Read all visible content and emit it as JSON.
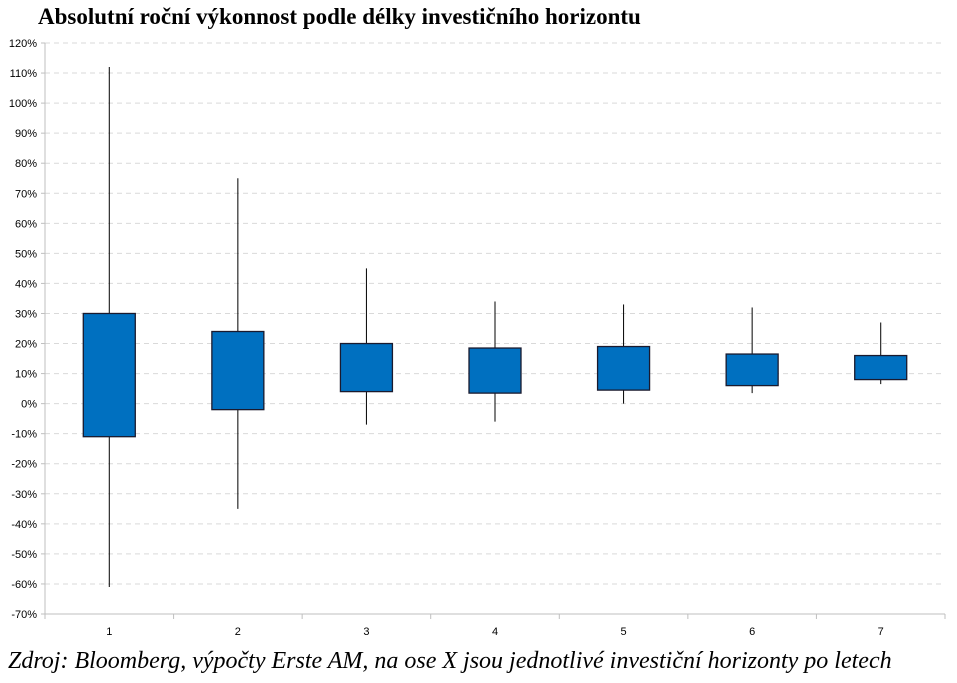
{
  "title": "Absolutní roční výkonnost podle délky investičního horizontu",
  "caption": "Zdroj: Bloomberg, výpočty Erste AM, na ose X jsou jednotlivé investiční horizonty po letech",
  "colors": {
    "box": "#0070C0",
    "box_border": "#1a1a2e",
    "grid": "#d9d9d9",
    "axis": "#bfbfbf",
    "whisker": "#000000"
  },
  "chart_data": {
    "type": "box",
    "title": "Absolutní roční výkonnost podle délky investičního horizontu",
    "xlabel": "",
    "ylabel": "",
    "ylim": [
      -70,
      120
    ],
    "ytick_step": 10,
    "yticks": [
      "120%",
      "110%",
      "100%",
      "90%",
      "80%",
      "70%",
      "60%",
      "50%",
      "40%",
      "30%",
      "20%",
      "10%",
      "0%",
      "-10%",
      "-20%",
      "-30%",
      "-40%",
      "-50%",
      "-60%",
      "-70%"
    ],
    "categories": [
      "1",
      "2",
      "3",
      "4",
      "5",
      "6",
      "7"
    ],
    "boxes": [
      {
        "x": "1",
        "min": -61,
        "q1": -11,
        "q3": 30,
        "max": 112
      },
      {
        "x": "2",
        "min": -35,
        "q1": -2,
        "q3": 24,
        "max": 75
      },
      {
        "x": "3",
        "min": -7,
        "q1": 4,
        "q3": 20,
        "max": 45
      },
      {
        "x": "4",
        "min": -6,
        "q1": 3.5,
        "q3": 18.5,
        "max": 34
      },
      {
        "x": "5",
        "min": 0,
        "q1": 4.5,
        "q3": 19,
        "max": 33
      },
      {
        "x": "6",
        "min": 3.5,
        "q1": 6,
        "q3": 16.5,
        "max": 32
      },
      {
        "x": "7",
        "min": 6.5,
        "q1": 8,
        "q3": 16,
        "max": 27
      }
    ],
    "grid": true,
    "legend": "none"
  }
}
